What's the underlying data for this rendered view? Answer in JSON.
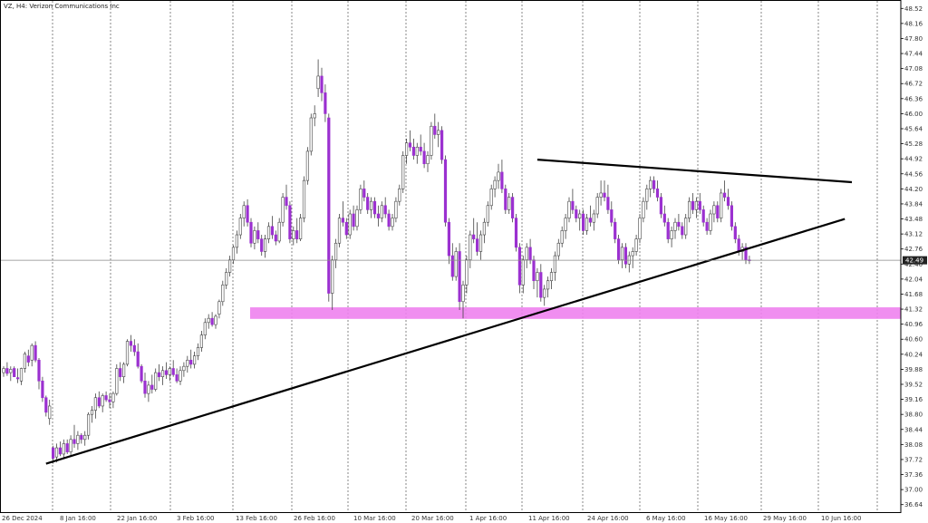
{
  "chart_data": {
    "type": "candlestick",
    "title": "VZ, H4:  Verizon Communications Inc",
    "y_ticks": [
      "48.52",
      "48.16",
      "47.80",
      "47.44",
      "47.08",
      "46.72",
      "46.36",
      "46.00",
      "45.64",
      "45.28",
      "44.92",
      "44.56",
      "44.20",
      "43.84",
      "43.48",
      "43.12",
      "42.76",
      "42.40",
      "42.04",
      "41.68",
      "41.32",
      "40.96",
      "40.60",
      "40.24",
      "39.88",
      "39.52",
      "39.16",
      "38.80",
      "38.44",
      "38.08",
      "37.72",
      "37.36",
      "37.00",
      "36.64"
    ],
    "x_labels": [
      "26 Dec 2024",
      "8 Jan 16:00",
      "22 Jan 16:00",
      "3 Feb 16:00",
      "13 Feb 16:00",
      "26 Feb 16:00",
      "10 Mar 16:00",
      "20 Mar 16:00",
      "1 Apr 16:00",
      "11 Apr 16:00",
      "24 Apr 16:00",
      "6 May 16:00",
      "16 May 16:00",
      "29 May 16:00",
      "10 Jun 16:00"
    ],
    "ylim": [
      36.46,
      48.7
    ],
    "current_price": "42.49",
    "colors": {
      "bull": "#ffffff",
      "bear": "#9b30d0",
      "wick": "#444444",
      "zone": "#ee82ee",
      "trendline": "#000000",
      "grid": "#555555",
      "price_tag": "#222222"
    },
    "support_zone": {
      "low": 41.13,
      "high": 41.32
    },
    "trendlines": [
      {
        "name": "ascending-support",
        "from": {
          "bar": 12,
          "price": 37.62
        },
        "to": {
          "bar": 238,
          "price": 43.48
        }
      },
      {
        "name": "descending-resistance",
        "from": {
          "bar": 151,
          "price": 44.9
        },
        "to": {
          "bar": 240,
          "price": 44.36
        }
      }
    ],
    "series_ohlc": [
      [
        39.8,
        39.95,
        39.7,
        39.9
      ],
      [
        39.9,
        40.05,
        39.72,
        39.78
      ],
      [
        39.8,
        39.95,
        39.6,
        39.88
      ],
      [
        39.9,
        39.95,
        39.7,
        39.7
      ],
      [
        39.68,
        39.9,
        39.55,
        39.65
      ],
      [
        39.6,
        39.92,
        39.5,
        39.9
      ],
      [
        39.9,
        40.3,
        39.8,
        40.25
      ],
      [
        40.2,
        40.35,
        39.95,
        40.05
      ],
      [
        40.1,
        40.5,
        39.95,
        40.45
      ],
      [
        40.45,
        40.55,
        40.05,
        40.1
      ],
      [
        40.1,
        40.15,
        39.4,
        39.6
      ],
      [
        39.6,
        39.7,
        39.1,
        39.2
      ],
      [
        39.2,
        39.25,
        38.75,
        38.85
      ],
      [
        38.7,
        39.15,
        38.55,
        39.0
      ],
      [
        38.0,
        38.05,
        37.62,
        37.75
      ],
      [
        37.78,
        38.1,
        37.65,
        38.0
      ],
      [
        38.0,
        38.15,
        37.8,
        37.85
      ],
      [
        37.85,
        38.2,
        37.75,
        38.1
      ],
      [
        38.1,
        38.2,
        37.85,
        37.9
      ],
      [
        37.9,
        38.3,
        37.8,
        38.2
      ],
      [
        38.2,
        38.55,
        38.0,
        38.1
      ],
      [
        38.1,
        38.4,
        37.95,
        38.3
      ],
      [
        38.3,
        38.35,
        38.1,
        38.2
      ],
      [
        38.2,
        38.4,
        38.05,
        38.3
      ],
      [
        38.3,
        38.85,
        38.2,
        38.8
      ],
      [
        38.8,
        39.0,
        38.6,
        38.9
      ],
      [
        38.9,
        39.3,
        38.7,
        39.2
      ],
      [
        39.2,
        39.35,
        38.95,
        39.0
      ],
      [
        39.0,
        39.3,
        38.85,
        39.25
      ],
      [
        39.25,
        39.35,
        39.1,
        39.15
      ],
      [
        39.15,
        39.3,
        38.95,
        39.1
      ],
      [
        39.1,
        39.35,
        38.95,
        39.3
      ],
      [
        39.3,
        40.0,
        39.25,
        39.9
      ],
      [
        39.9,
        40.05,
        39.6,
        39.7
      ],
      [
        39.7,
        40.05,
        39.55,
        40.0
      ],
      [
        40.0,
        40.6,
        39.95,
        40.55
      ],
      [
        40.55,
        40.7,
        40.3,
        40.45
      ],
      [
        40.45,
        40.6,
        40.2,
        40.3
      ],
      [
        40.3,
        40.5,
        39.9,
        39.95
      ],
      [
        39.95,
        40.0,
        39.55,
        39.6
      ],
      [
        39.6,
        39.8,
        39.2,
        39.3
      ],
      [
        39.3,
        39.6,
        39.1,
        39.5
      ],
      [
        39.5,
        39.75,
        39.3,
        39.4
      ],
      [
        39.4,
        39.9,
        39.35,
        39.8
      ],
      [
        39.8,
        40.0,
        39.6,
        39.7
      ],
      [
        39.7,
        39.95,
        39.5,
        39.85
      ],
      [
        39.85,
        40.05,
        39.65,
        39.75
      ],
      [
        39.75,
        39.95,
        39.6,
        39.9
      ],
      [
        39.9,
        40.1,
        39.7,
        39.75
      ],
      [
        39.75,
        39.9,
        39.55,
        39.6
      ],
      [
        39.6,
        39.95,
        39.5,
        39.85
      ],
      [
        39.85,
        40.05,
        39.7,
        39.95
      ],
      [
        39.95,
        40.2,
        39.8,
        40.1
      ],
      [
        40.1,
        40.35,
        39.9,
        40.0
      ],
      [
        40.0,
        40.3,
        39.9,
        40.2
      ],
      [
        40.2,
        40.5,
        40.1,
        40.4
      ],
      [
        40.4,
        40.8,
        40.3,
        40.7
      ],
      [
        40.7,
        41.1,
        40.6,
        41.0
      ],
      [
        41.0,
        41.2,
        40.85,
        41.1
      ],
      [
        41.1,
        41.25,
        40.9,
        40.95
      ],
      [
        40.95,
        41.2,
        40.85,
        41.15
      ],
      [
        41.2,
        41.55,
        41.1,
        41.5
      ],
      [
        41.5,
        42.0,
        41.4,
        41.9
      ],
      [
        41.9,
        42.3,
        41.8,
        42.2
      ],
      [
        42.2,
        42.6,
        42.1,
        42.5
      ],
      [
        42.5,
        42.85,
        42.4,
        42.8
      ],
      [
        42.8,
        43.2,
        42.65,
        43.1
      ],
      [
        43.1,
        43.6,
        43.0,
        43.5
      ],
      [
        43.5,
        43.9,
        43.3,
        43.8
      ],
      [
        43.8,
        43.95,
        43.3,
        43.4
      ],
      [
        43.4,
        43.5,
        42.8,
        42.9
      ],
      [
        42.9,
        43.3,
        42.75,
        43.2
      ],
      [
        43.2,
        43.4,
        42.9,
        43.0
      ],
      [
        43.0,
        43.1,
        42.6,
        42.7
      ],
      [
        42.7,
        43.1,
        42.55,
        43.0
      ],
      [
        43.0,
        43.4,
        42.9,
        43.3
      ],
      [
        43.3,
        43.55,
        43.0,
        43.1
      ],
      [
        43.1,
        43.2,
        42.85,
        42.95
      ],
      [
        42.95,
        43.5,
        42.9,
        43.4
      ],
      [
        43.4,
        44.1,
        43.3,
        44.0
      ],
      [
        44.0,
        44.3,
        43.7,
        43.8
      ],
      [
        43.8,
        43.9,
        42.9,
        43.0
      ],
      [
        43.0,
        43.3,
        42.85,
        43.2
      ],
      [
        43.2,
        43.5,
        42.9,
        43.0
      ],
      [
        43.0,
        43.6,
        42.95,
        43.5
      ],
      [
        43.5,
        44.5,
        43.4,
        44.4
      ],
      [
        44.4,
        45.2,
        44.3,
        45.1
      ],
      [
        45.1,
        46.0,
        45.0,
        45.9
      ],
      [
        45.9,
        46.2,
        45.7,
        46.0
      ],
      [
        46.6,
        47.3,
        46.4,
        46.9
      ],
      [
        46.9,
        47.1,
        46.3,
        46.5
      ],
      [
        46.5,
        46.7,
        45.8,
        46.0
      ],
      [
        45.9,
        46.0,
        41.5,
        41.7
      ],
      [
        41.7,
        42.6,
        41.3,
        42.5
      ],
      [
        42.5,
        43.0,
        42.3,
        42.9
      ],
      [
        42.9,
        43.6,
        42.8,
        43.5
      ],
      [
        43.5,
        43.9,
        43.3,
        43.4
      ],
      [
        43.4,
        43.5,
        43.0,
        43.1
      ],
      [
        43.1,
        43.7,
        43.0,
        43.6
      ],
      [
        43.6,
        43.8,
        43.2,
        43.3
      ],
      [
        43.3,
        43.8,
        43.2,
        43.7
      ],
      [
        43.7,
        44.3,
        43.6,
        44.2
      ],
      [
        44.2,
        44.4,
        43.9,
        44.0
      ],
      [
        44.0,
        44.1,
        43.6,
        43.7
      ],
      [
        43.7,
        44.0,
        43.5,
        43.9
      ],
      [
        43.9,
        44.0,
        43.5,
        43.6
      ],
      [
        43.6,
        43.8,
        43.3,
        43.5
      ],
      [
        43.5,
        43.9,
        43.4,
        43.8
      ],
      [
        43.8,
        44.0,
        43.5,
        43.6
      ],
      [
        43.6,
        43.7,
        43.2,
        43.3
      ],
      [
        43.3,
        43.6,
        43.2,
        43.5
      ],
      [
        43.5,
        44.0,
        43.4,
        43.9
      ],
      [
        43.9,
        44.3,
        43.8,
        44.2
      ],
      [
        44.2,
        45.1,
        44.1,
        45.0
      ],
      [
        45.0,
        45.4,
        44.8,
        45.3
      ],
      [
        45.3,
        45.6,
        45.1,
        45.2
      ],
      [
        45.2,
        45.4,
        44.9,
        45.0
      ],
      [
        45.0,
        45.3,
        44.8,
        45.2
      ],
      [
        45.2,
        45.5,
        45.0,
        45.1
      ],
      [
        45.1,
        45.3,
        44.7,
        44.8
      ],
      [
        44.8,
        45.1,
        44.6,
        45.0
      ],
      [
        45.0,
        45.8,
        44.9,
        45.7
      ],
      [
        45.7,
        46.0,
        45.4,
        45.5
      ],
      [
        45.5,
        45.8,
        45.2,
        45.6
      ],
      [
        45.6,
        45.7,
        44.8,
        44.9
      ],
      [
        44.9,
        45.0,
        43.3,
        43.4
      ],
      [
        43.4,
        43.5,
        42.4,
        42.6
      ],
      [
        42.6,
        42.9,
        42.0,
        42.1
      ],
      [
        42.1,
        42.8,
        42.0,
        42.7
      ],
      [
        42.7,
        42.9,
        41.3,
        41.5
      ],
      [
        41.5,
        42.0,
        41.1,
        41.9
      ],
      [
        41.9,
        42.6,
        41.7,
        42.5
      ],
      [
        42.5,
        43.2,
        42.3,
        43.1
      ],
      [
        43.1,
        43.5,
        42.9,
        43.0
      ],
      [
        43.0,
        43.4,
        42.6,
        42.7
      ],
      [
        42.7,
        43.2,
        42.5,
        43.1
      ],
      [
        43.1,
        43.5,
        42.9,
        43.4
      ],
      [
        43.4,
        43.9,
        43.3,
        43.8
      ],
      [
        43.8,
        44.3,
        43.7,
        44.2
      ],
      [
        44.2,
        44.5,
        44.0,
        44.4
      ],
      [
        44.4,
        44.8,
        44.2,
        44.6
      ],
      [
        44.6,
        44.9,
        44.1,
        44.2
      ],
      [
        44.2,
        44.3,
        43.6,
        43.7
      ],
      [
        43.7,
        44.1,
        43.6,
        44.0
      ],
      [
        44.0,
        44.1,
        43.4,
        43.5
      ],
      [
        43.5,
        43.6,
        42.7,
        42.8
      ],
      [
        42.8,
        42.9,
        41.7,
        41.9
      ],
      [
        41.9,
        42.6,
        41.7,
        42.5
      ],
      [
        42.5,
        42.9,
        42.3,
        42.8
      ],
      [
        42.8,
        43.0,
        42.4,
        42.5
      ],
      [
        42.5,
        42.6,
        41.8,
        42.0
      ],
      [
        42.0,
        42.3,
        41.6,
        42.2
      ],
      [
        42.2,
        42.4,
        41.5,
        41.6
      ],
      [
        41.6,
        41.9,
        41.4,
        41.8
      ],
      [
        41.8,
        42.1,
        41.6,
        42.0
      ],
      [
        42.0,
        42.3,
        41.8,
        42.2
      ],
      [
        42.2,
        42.7,
        42.0,
        42.6
      ],
      [
        42.6,
        43.0,
        42.5,
        42.9
      ],
      [
        42.9,
        43.3,
        42.8,
        43.2
      ],
      [
        43.2,
        43.6,
        43.0,
        43.5
      ],
      [
        43.5,
        44.0,
        43.4,
        43.9
      ],
      [
        43.9,
        44.2,
        43.6,
        43.7
      ],
      [
        43.7,
        43.8,
        43.4,
        43.5
      ],
      [
        43.5,
        43.7,
        43.2,
        43.6
      ],
      [
        43.6,
        43.7,
        43.1,
        43.2
      ],
      [
        43.2,
        43.6,
        43.1,
        43.5
      ],
      [
        43.5,
        43.8,
        43.3,
        43.4
      ],
      [
        43.4,
        43.7,
        43.2,
        43.6
      ],
      [
        43.6,
        44.1,
        43.5,
        44.0
      ],
      [
        44.0,
        44.4,
        43.8,
        44.1
      ],
      [
        44.1,
        44.4,
        43.9,
        44.0
      ],
      [
        44.0,
        44.3,
        43.6,
        43.7
      ],
      [
        43.7,
        43.9,
        43.3,
        43.4
      ],
      [
        43.4,
        43.5,
        42.9,
        43.0
      ],
      [
        43.0,
        43.1,
        42.4,
        42.5
      ],
      [
        42.5,
        42.9,
        42.3,
        42.8
      ],
      [
        42.8,
        42.9,
        42.3,
        42.4
      ],
      [
        42.4,
        42.7,
        42.2,
        42.6
      ],
      [
        42.6,
        42.8,
        42.3,
        42.7
      ],
      [
        42.7,
        43.1,
        42.6,
        43.0
      ],
      [
        43.0,
        43.6,
        42.9,
        43.5
      ],
      [
        43.5,
        44.0,
        43.4,
        43.9
      ],
      [
        43.9,
        44.3,
        43.7,
        44.2
      ],
      [
        44.2,
        44.5,
        44.0,
        44.4
      ],
      [
        44.4,
        44.5,
        44.1,
        44.2
      ],
      [
        44.2,
        44.4,
        43.9,
        44.0
      ],
      [
        44.0,
        44.1,
        43.5,
        43.6
      ],
      [
        43.6,
        43.8,
        43.3,
        43.4
      ],
      [
        43.4,
        43.5,
        42.9,
        43.0
      ],
      [
        43.0,
        43.3,
        42.8,
        43.2
      ],
      [
        43.2,
        43.5,
        43.0,
        43.4
      ],
      [
        43.4,
        43.6,
        43.2,
        43.3
      ],
      [
        43.3,
        43.4,
        43.0,
        43.1
      ],
      [
        43.1,
        43.6,
        43.0,
        43.5
      ],
      [
        43.5,
        44.0,
        43.4,
        43.9
      ],
      [
        43.9,
        44.1,
        43.6,
        43.7
      ],
      [
        43.7,
        44.0,
        43.5,
        43.9
      ],
      [
        43.9,
        44.1,
        43.6,
        43.7
      ],
      [
        43.7,
        43.8,
        43.3,
        43.4
      ],
      [
        43.4,
        43.5,
        43.1,
        43.2
      ],
      [
        43.2,
        43.7,
        43.1,
        43.6
      ],
      [
        43.6,
        43.9,
        43.4,
        43.8
      ],
      [
        43.8,
        43.9,
        43.4,
        43.5
      ],
      [
        43.5,
        44.2,
        43.4,
        44.1
      ],
      [
        44.1,
        44.4,
        43.9,
        44.0
      ],
      [
        44.0,
        44.2,
        43.7,
        43.8
      ],
      [
        43.8,
        43.9,
        43.2,
        43.3
      ],
      [
        43.3,
        43.4,
        42.9,
        43.0
      ],
      [
        43.0,
        43.1,
        42.6,
        42.7
      ],
      [
        42.7,
        42.9,
        42.5,
        42.8
      ],
      [
        42.8,
        42.9,
        42.4,
        42.5
      ],
      [
        42.5,
        42.6,
        42.4,
        42.49
      ]
    ]
  }
}
